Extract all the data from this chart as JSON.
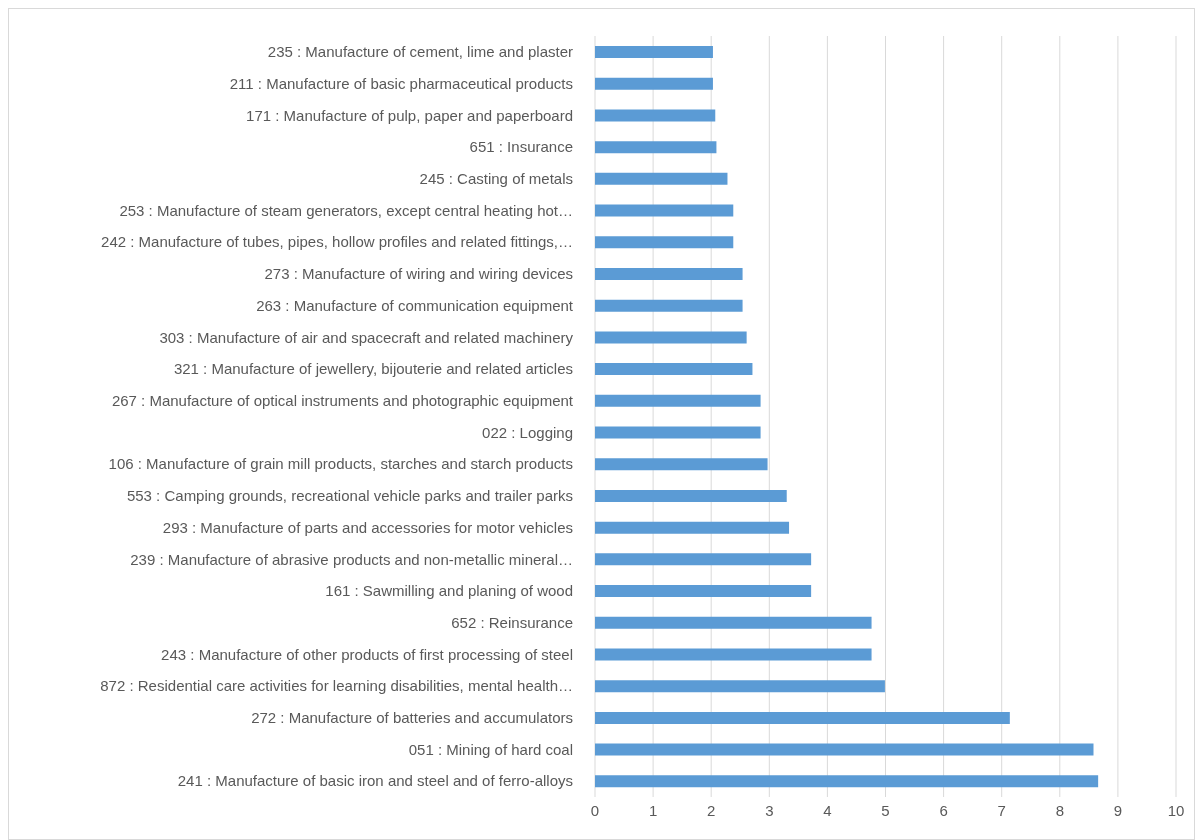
{
  "chart_data": {
    "type": "bar",
    "orientation": "horizontal",
    "categories": [
      "235 : Manufacture of cement, lime and plaster",
      "211 : Manufacture of basic pharmaceutical products",
      "171 : Manufacture of pulp, paper and paperboard",
      "651 : Insurance",
      "245 : Casting of metals",
      "253 : Manufacture of steam generators, except central heating hot…",
      "242 : Manufacture of tubes, pipes, hollow profiles and related fittings,…",
      "273 : Manufacture of wiring and wiring devices",
      "263 : Manufacture of communication equipment",
      "303 : Manufacture of air and spacecraft and related machinery",
      "321 : Manufacture of jewellery, bijouterie and related articles",
      "267 : Manufacture of optical instruments and photographic equipment",
      "022 : Logging",
      "106 : Manufacture of grain mill products, starches and starch products",
      "553 : Camping grounds, recreational vehicle parks and trailer parks",
      "293 : Manufacture of parts and accessories for motor vehicles",
      "239 : Manufacture of abrasive products and non-metallic mineral…",
      "161 : Sawmilling and planing of wood",
      "652 : Reinsurance",
      "243 : Manufacture of other products of first processing of steel",
      "872 : Residential care activities for learning disabilities, mental health…",
      "272 : Manufacture of batteries and accumulators",
      "051 : Mining of hard coal",
      "241 : Manufacture of basic iron and steel and of ferro-alloys"
    ],
    "values": [
      2.03,
      2.03,
      2.07,
      2.09,
      2.28,
      2.38,
      2.38,
      2.54,
      2.54,
      2.61,
      2.71,
      2.85,
      2.85,
      2.97,
      3.3,
      3.34,
      3.72,
      3.72,
      4.76,
      4.76,
      4.99,
      7.14,
      8.58,
      8.66
    ],
    "color": "#5b9bd5",
    "xlim": [
      0,
      10
    ],
    "xticks": [
      0,
      1,
      2,
      3,
      4,
      5,
      6,
      7,
      8,
      9,
      10
    ],
    "grid": "x",
    "legend": false
  }
}
